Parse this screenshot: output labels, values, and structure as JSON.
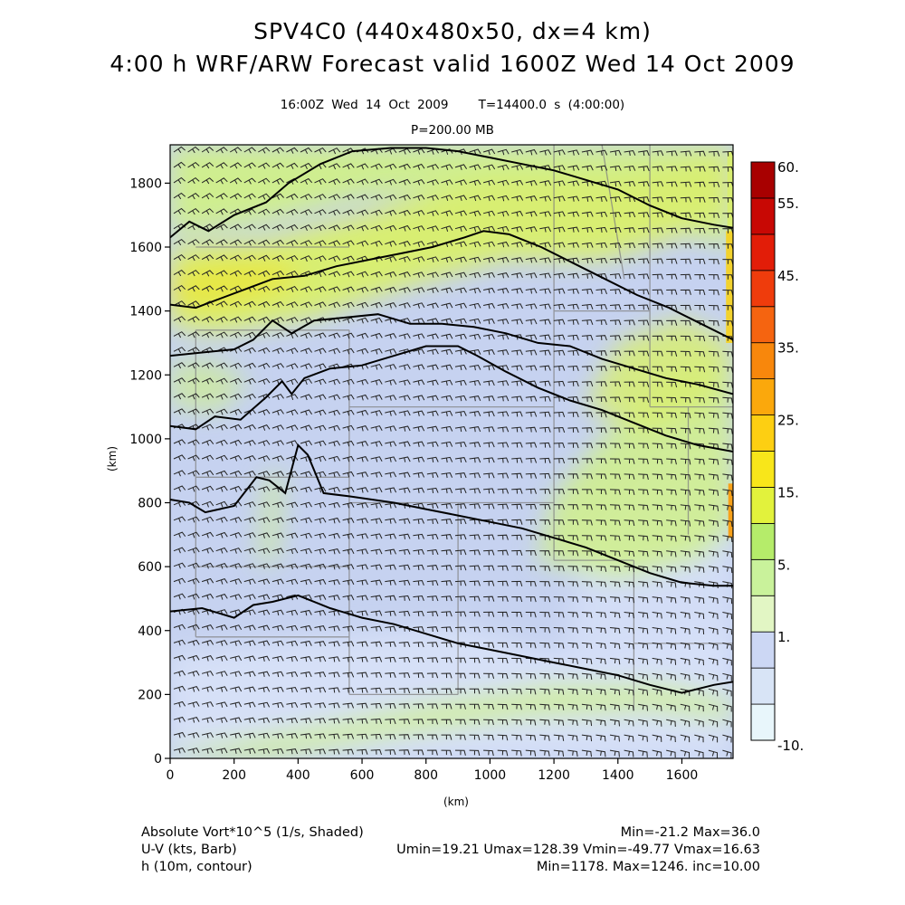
{
  "header": {
    "title_line1": "SPV4C0 (440x480x50, dx=4 km)",
    "title_line2": "4:00 h WRF/ARW Forecast valid 1600Z Wed 14 Oct 2009",
    "valid_time": "16:00Z Wed 14 Oct 2009",
    "time_info": "T=14400.0 s (4:00:00)",
    "pressure_level": "P=200.00 MB"
  },
  "footer": {
    "field1_label": "Absolute Vort*10^5 (1/s, Shaded)",
    "field1_stats": "Min=-21.2 Max=36.0",
    "field2_label": "U-V (kts, Barb)",
    "field2_stats": "Umin=19.21 Umax=128.39 Vmin=-49.77 Vmax=16.63",
    "field3_label": "h (10m, contour)",
    "field3_stats": "Min=1178. Max=1246. inc=10.00"
  },
  "chart_data": {
    "type": "heatmap",
    "xlabel": "(km)",
    "ylabel": "(km)",
    "xlim": [
      0,
      1760
    ],
    "ylim": [
      0,
      1920
    ],
    "x_ticks": [
      "0",
      "200",
      "400",
      "600",
      "800",
      "1000",
      "1200",
      "1400",
      "1600"
    ],
    "y_ticks": [
      "0",
      "200",
      "400",
      "600",
      "800",
      "1000",
      "1200",
      "1400",
      "1600",
      "1800"
    ],
    "colorbar": {
      "labels": [
        "60.",
        "55.",
        "45.",
        "35.",
        "25.",
        "15.",
        "5.",
        "1.",
        "-10."
      ],
      "colors": [
        "#e8f6fb",
        "#d8e4f6",
        "#ccd7f4",
        "#e2f6c4",
        "#c9f29b",
        "#b5ec6a",
        "#e2f23c",
        "#f8e61a",
        "#fdcf12",
        "#fba80c",
        "#f8870c",
        "#f56410",
        "#ef3c0c",
        "#e21d08",
        "#c80804",
        "#a80000"
      ]
    },
    "fill_colors": {
      "background": "#c6d2f0",
      "light_blue": "#d6e0f7",
      "light_green": "#cfee8f",
      "green_yellow": "#d8ee72",
      "yellow": "#e8e640",
      "orange": "#f7a11a",
      "barb": "#222222",
      "contour": "#000000",
      "border": "#808080"
    },
    "contours": [
      {
        "level": "1178",
        "points": [
          [
            0,
            460
          ],
          [
            100,
            470
          ],
          [
            200,
            440
          ],
          [
            260,
            480
          ],
          [
            320,
            490
          ],
          [
            400,
            510
          ],
          [
            500,
            470
          ],
          [
            600,
            440
          ],
          [
            700,
            420
          ],
          [
            800,
            390
          ],
          [
            900,
            360
          ],
          [
            1000,
            340
          ],
          [
            1100,
            320
          ],
          [
            1200,
            300
          ],
          [
            1300,
            280
          ],
          [
            1400,
            260
          ],
          [
            1500,
            230
          ],
          [
            1600,
            205
          ],
          [
            1700,
            230
          ],
          [
            1760,
            240
          ]
        ]
      },
      {
        "level": "1188",
        "points": [
          [
            0,
            810
          ],
          [
            60,
            800
          ],
          [
            110,
            770
          ],
          [
            200,
            790
          ],
          [
            270,
            880
          ],
          [
            310,
            870
          ],
          [
            360,
            830
          ],
          [
            400,
            980
          ],
          [
            430,
            950
          ],
          [
            480,
            830
          ],
          [
            560,
            820
          ],
          [
            700,
            800
          ],
          [
            800,
            780
          ],
          [
            900,
            760
          ],
          [
            1000,
            740
          ],
          [
            1100,
            720
          ],
          [
            1200,
            690
          ],
          [
            1300,
            660
          ],
          [
            1400,
            620
          ],
          [
            1500,
            580
          ],
          [
            1600,
            550
          ],
          [
            1700,
            540
          ],
          [
            1760,
            540
          ]
        ]
      },
      {
        "level": "1198",
        "points": [
          [
            0,
            1040
          ],
          [
            80,
            1030
          ],
          [
            140,
            1070
          ],
          [
            220,
            1060
          ],
          [
            300,
            1130
          ],
          [
            350,
            1180
          ],
          [
            380,
            1140
          ],
          [
            420,
            1190
          ],
          [
            500,
            1220
          ],
          [
            600,
            1230
          ],
          [
            700,
            1260
          ],
          [
            800,
            1290
          ],
          [
            900,
            1290
          ],
          [
            960,
            1260
          ],
          [
            1050,
            1210
          ],
          [
            1150,
            1160
          ],
          [
            1250,
            1120
          ],
          [
            1350,
            1090
          ],
          [
            1450,
            1050
          ],
          [
            1550,
            1010
          ],
          [
            1650,
            980
          ],
          [
            1760,
            960
          ]
        ]
      },
      {
        "level": "1208",
        "points": [
          [
            0,
            1260
          ],
          [
            100,
            1270
          ],
          [
            200,
            1280
          ],
          [
            260,
            1310
          ],
          [
            320,
            1370
          ],
          [
            380,
            1330
          ],
          [
            450,
            1370
          ],
          [
            550,
            1380
          ],
          [
            650,
            1390
          ],
          [
            750,
            1360
          ],
          [
            850,
            1360
          ],
          [
            950,
            1350
          ],
          [
            1050,
            1330
          ],
          [
            1150,
            1300
          ],
          [
            1250,
            1290
          ],
          [
            1350,
            1250
          ],
          [
            1450,
            1220
          ],
          [
            1550,
            1190
          ],
          [
            1650,
            1170
          ],
          [
            1760,
            1140
          ]
        ]
      },
      {
        "level": "1218",
        "points": [
          [
            0,
            1420
          ],
          [
            80,
            1410
          ],
          [
            160,
            1440
          ],
          [
            240,
            1470
          ],
          [
            320,
            1500
          ],
          [
            420,
            1510
          ],
          [
            520,
            1540
          ],
          [
            620,
            1560
          ],
          [
            720,
            1580
          ],
          [
            820,
            1600
          ],
          [
            920,
            1630
          ],
          [
            980,
            1650
          ],
          [
            1060,
            1640
          ],
          [
            1160,
            1600
          ],
          [
            1260,
            1550
          ],
          [
            1360,
            1500
          ],
          [
            1460,
            1450
          ],
          [
            1560,
            1410
          ],
          [
            1660,
            1360
          ],
          [
            1760,
            1310
          ]
        ]
      },
      {
        "level": "1228",
        "points": [
          [
            0,
            1630
          ],
          [
            60,
            1680
          ],
          [
            120,
            1650
          ],
          [
            200,
            1700
          ],
          [
            300,
            1740
          ],
          [
            370,
            1800
          ],
          [
            470,
            1860
          ],
          [
            570,
            1900
          ],
          [
            690,
            1910
          ],
          [
            800,
            1910
          ],
          [
            900,
            1900
          ],
          [
            1000,
            1880
          ],
          [
            1100,
            1860
          ],
          [
            1200,
            1840
          ],
          [
            1300,
            1810
          ],
          [
            1400,
            1780
          ],
          [
            1500,
            1730
          ],
          [
            1600,
            1690
          ],
          [
            1700,
            1670
          ],
          [
            1760,
            1660
          ]
        ]
      }
    ]
  }
}
